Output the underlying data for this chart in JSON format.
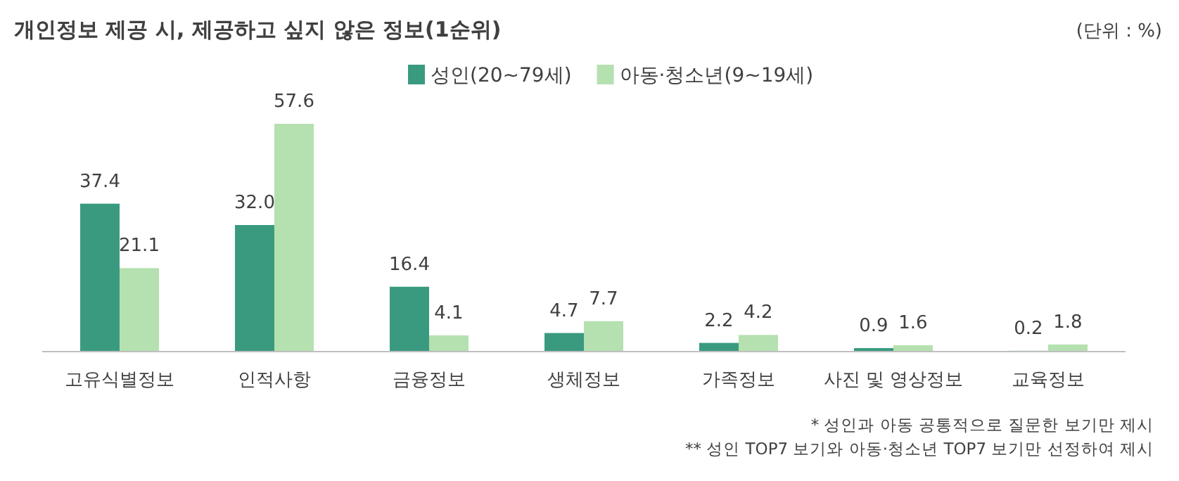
{
  "chart_data": {
    "type": "bar",
    "title": "개인정보 제공 시, 제공하고 싶지 않은 정보(1순위)",
    "subtitle": "(단위 : %)",
    "categories": [
      "고유식별정보",
      "인적사항",
      "금융정보",
      "생체정보",
      "가족정보",
      "사진 및 영상정보",
      "교육정보"
    ],
    "series": [
      {
        "name": "성인(20~79세)",
        "color": "#3a9a80",
        "values": [
          37.4,
          32.0,
          16.4,
          4.7,
          2.2,
          0.9,
          0.2
        ],
        "value_labels": [
          "37.4",
          "32.0",
          "16.4",
          "4.7",
          "2.2",
          "0.9",
          "0.2"
        ]
      },
      {
        "name": "아동·청소년(9~19세)",
        "color": "#b5e0b0",
        "values": [
          21.1,
          57.6,
          4.1,
          7.7,
          4.2,
          1.6,
          1.8
        ],
        "value_labels": [
          "21.1",
          "57.6",
          "4.1",
          "7.7",
          "4.2",
          "1.6",
          "1.8"
        ]
      }
    ],
    "legend": "top",
    "annotations": [
      "* 성인과 아동 공통적으로 질문한 보기만 제시",
      "** 성인 TOP7 보기와 아동·청소년 TOP7 보기만 선정하여 제시"
    ]
  }
}
